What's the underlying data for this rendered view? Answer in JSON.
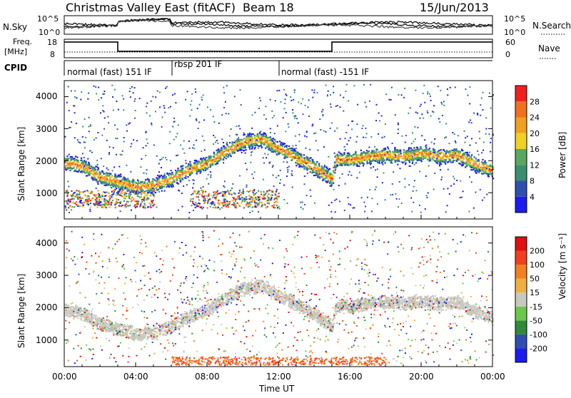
{
  "header": {
    "title": "Christmas Valley East (fitACF)",
    "beam": "Beam 18",
    "date": "15/Jun/2013"
  },
  "noise_panel": {
    "left_label": "N.Sky",
    "right_label": "N.Search",
    "left_ticks": [
      "10^5",
      "10^0"
    ],
    "right_ticks": [
      "10^5",
      "10^0"
    ]
  },
  "freq_panel": {
    "left_label_1": "Freq.",
    "left_label_2": "[MHz]",
    "left_ticks": [
      "18",
      "8"
    ],
    "right_label": "Nave",
    "right_ticks": [
      "60",
      "0"
    ]
  },
  "cpid": {
    "label": "CPID",
    "segments": [
      {
        "label": "normal (fast) 151 IF",
        "start_hour": 0
      },
      {
        "label": "rbsp 201 IF",
        "start_hour": 6
      },
      {
        "label": "normal (fast) -151 IF",
        "start_hour": 12
      }
    ]
  },
  "power_panel": {
    "ylabel": "Slant Range [km]",
    "yticks": [
      "4000",
      "3000",
      "2000",
      "1000"
    ],
    "colorbar_label": "Power [dB]",
    "colorbar_ticks": [
      "28",
      "24",
      "20",
      "16",
      "12",
      "8",
      "4"
    ]
  },
  "velocity_panel": {
    "ylabel": "Slant Range [km]",
    "yticks": [
      "4000",
      "3000",
      "2000",
      "1000"
    ],
    "colorbar_label": "Velocity [m s⁻¹]",
    "colorbar_ticks": [
      "200",
      "100",
      "50",
      "15",
      "-15",
      "-50",
      "-100",
      "-200"
    ]
  },
  "xaxis": {
    "label": "Time UT",
    "ticks": [
      "00:00",
      "04:00",
      "08:00",
      "12:00",
      "16:00",
      "20:00",
      "00:00"
    ]
  },
  "chart_data": {
    "type": "heatmap",
    "x_range_hours": [
      0,
      24
    ],
    "y_range_km": [
      180,
      4500
    ],
    "power_colors": [
      "#1c1cf0",
      "#2f4fb0",
      "#3a8f6e",
      "#58a860",
      "#f0d020",
      "#f0a020",
      "#f07020",
      "#f02020"
    ],
    "power_levels_db": [
      4,
      8,
      12,
      16,
      20,
      24,
      28
    ],
    "velocity_colors": [
      "#1c1cf0",
      "#2f4fb0",
      "#2f8a3a",
      "#6cc84a",
      "#c8c8c0",
      "#f0b040",
      "#f08020",
      "#f04020",
      "#e01010"
    ],
    "velocity_levels": [
      200,
      100,
      50,
      15,
      -15,
      -50,
      -100,
      -200
    ],
    "freq_mhz_steps": [
      {
        "start_hour": 0,
        "end_hour": 3,
        "freq": 16.5
      },
      {
        "start_hour": 3,
        "end_hour": 15,
        "freq": 11.5
      },
      {
        "start_hour": 15,
        "end_hour": 24,
        "freq": 16.5
      }
    ],
    "main_echo_band_km": [
      [
        0,
        1950
      ],
      [
        1,
        1850
      ],
      [
        2,
        1500
      ],
      [
        3,
        1350
      ],
      [
        4,
        1200
      ],
      [
        5,
        1250
      ],
      [
        6,
        1450
      ],
      [
        7,
        1750
      ],
      [
        8,
        1950
      ],
      [
        9,
        2300
      ],
      [
        10,
        2600
      ],
      [
        11,
        2700
      ],
      [
        12,
        2400
      ],
      [
        13,
        2100
      ],
      [
        14,
        1800
      ],
      [
        15,
        1450
      ],
      [
        15.2,
        2050
      ],
      [
        16,
        2050
      ],
      [
        17,
        2150
      ],
      [
        18,
        2200
      ],
      [
        19,
        2150
      ],
      [
        20,
        2250
      ],
      [
        21,
        2150
      ],
      [
        22,
        2200
      ],
      [
        23,
        1900
      ],
      [
        24,
        1700
      ]
    ]
  }
}
